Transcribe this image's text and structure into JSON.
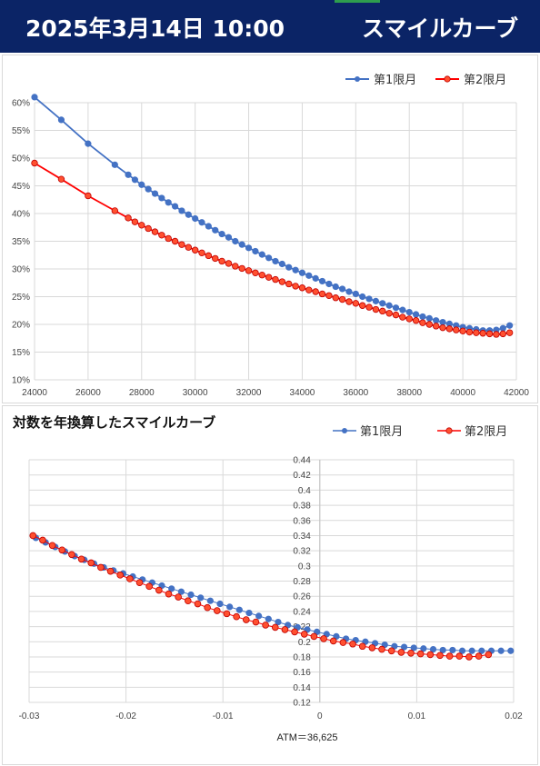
{
  "header": {
    "date": "2025年3月14日 10:00",
    "title": "スマイルカーブ"
  },
  "colors": {
    "header_bg": "#0b2466",
    "series1": "#4472c4",
    "series2": "#ff0000",
    "series2_fill": "#ff5030"
  },
  "chart_data": [
    {
      "type": "line",
      "title": "",
      "xlim": [
        24000,
        42000
      ],
      "ylim": [
        0.1,
        0.6
      ],
      "x_ticks": [
        24000,
        26000,
        28000,
        30000,
        32000,
        34000,
        36000,
        38000,
        40000,
        42000
      ],
      "y_ticks": [
        "10%",
        "15%",
        "20%",
        "25%",
        "30%",
        "35%",
        "40%",
        "45%",
        "50%",
        "55%",
        "60%"
      ],
      "y_tick_values": [
        0.1,
        0.15,
        0.2,
        0.25,
        0.3,
        0.35,
        0.4,
        0.45,
        0.5,
        0.55,
        0.6
      ],
      "legend_position": "top-right",
      "grid": true,
      "series": [
        {
          "name": "第1限月",
          "x": [
            24000,
            25000,
            26000,
            27000,
            27500,
            27750,
            28000,
            28250,
            28500,
            28750,
            29000,
            29250,
            29500,
            29750,
            30000,
            30250,
            30500,
            30750,
            31000,
            31250,
            31500,
            31750,
            32000,
            32250,
            32500,
            32750,
            33000,
            33250,
            33500,
            33750,
            34000,
            34250,
            34500,
            34750,
            35000,
            35250,
            35500,
            35750,
            36000,
            36250,
            36500,
            36750,
            37000,
            37250,
            37500,
            37750,
            38000,
            38250,
            38500,
            38750,
            39000,
            39250,
            39500,
            39750,
            40000,
            40250,
            40500,
            40750,
            41000,
            41250,
            41500,
            41750
          ],
          "y": [
            0.61,
            0.569,
            0.526,
            0.488,
            0.47,
            0.461,
            0.452,
            0.444,
            0.436,
            0.428,
            0.42,
            0.413,
            0.405,
            0.398,
            0.391,
            0.384,
            0.377,
            0.37,
            0.363,
            0.357,
            0.35,
            0.344,
            0.338,
            0.332,
            0.326,
            0.32,
            0.314,
            0.309,
            0.303,
            0.298,
            0.293,
            0.288,
            0.283,
            0.278,
            0.273,
            0.268,
            0.264,
            0.259,
            0.255,
            0.25,
            0.246,
            0.242,
            0.238,
            0.234,
            0.23,
            0.226,
            0.222,
            0.218,
            0.214,
            0.211,
            0.207,
            0.204,
            0.201,
            0.198,
            0.195,
            0.193,
            0.191,
            0.189,
            0.189,
            0.19,
            0.193,
            0.198
          ]
        },
        {
          "name": "第2限月",
          "x": [
            24000,
            25000,
            26000,
            27000,
            27500,
            27750,
            28000,
            28250,
            28500,
            28750,
            29000,
            29250,
            29500,
            29750,
            30000,
            30250,
            30500,
            30750,
            31000,
            31250,
            31500,
            31750,
            32000,
            32250,
            32500,
            32750,
            33000,
            33250,
            33500,
            33750,
            34000,
            34250,
            34500,
            34750,
            35000,
            35250,
            35500,
            35750,
            36000,
            36250,
            36500,
            36750,
            37000,
            37250,
            37500,
            37750,
            38000,
            38250,
            38500,
            38750,
            39000,
            39250,
            39500,
            39750,
            40000,
            40250,
            40500,
            40750,
            41000,
            41250,
            41500,
            41750
          ],
          "y": [
            0.491,
            0.462,
            0.432,
            0.405,
            0.392,
            0.385,
            0.379,
            0.373,
            0.367,
            0.361,
            0.355,
            0.35,
            0.344,
            0.339,
            0.334,
            0.329,
            0.324,
            0.319,
            0.314,
            0.31,
            0.305,
            0.301,
            0.297,
            0.293,
            0.289,
            0.285,
            0.281,
            0.277,
            0.273,
            0.269,
            0.266,
            0.262,
            0.259,
            0.255,
            0.252,
            0.248,
            0.245,
            0.241,
            0.238,
            0.234,
            0.231,
            0.227,
            0.224,
            0.22,
            0.217,
            0.213,
            0.21,
            0.207,
            0.203,
            0.2,
            0.197,
            0.194,
            0.192,
            0.19,
            0.188,
            0.186,
            0.185,
            0.184,
            0.183,
            0.182,
            0.183,
            0.185
          ]
        }
      ]
    },
    {
      "type": "scatter",
      "title": "対数を年換算したスマイルカーブ",
      "xlim": [
        -0.03,
        0.02
      ],
      "ylim": [
        0.12,
        0.44
      ],
      "x_ticks": [
        "-0.03",
        "-0.02",
        "-0.01",
        "0",
        "0.01",
        "0.02"
      ],
      "x_tick_values": [
        -0.03,
        -0.02,
        -0.01,
        0,
        0.01,
        0.02
      ],
      "y_ticks": [
        "0.12",
        "0.14",
        "0.16",
        "0.18",
        "0.2",
        "0.22",
        "0.24",
        "0.26",
        "0.28",
        "0.3",
        "0.32",
        "0.34",
        "0.36",
        "0.38",
        "0.4",
        "0.42",
        "0.44"
      ],
      "y_tick_values": [
        0.12,
        0.14,
        0.16,
        0.18,
        0.2,
        0.22,
        0.24,
        0.26,
        0.28,
        0.3,
        0.32,
        0.34,
        0.36,
        0.38,
        0.4,
        0.42,
        0.44
      ],
      "legend_position": "top-right",
      "grid": true,
      "annotation": "ATM＝36,625",
      "series": [
        {
          "name": "第1限月",
          "x": [
            -0.0293,
            -0.0283,
            -0.0273,
            -0.0263,
            -0.0253,
            -0.0243,
            -0.0233,
            -0.0223,
            -0.0213,
            -0.0203,
            -0.0193,
            -0.0183,
            -0.0173,
            -0.0163,
            -0.0153,
            -0.0143,
            -0.0133,
            -0.0123,
            -0.0113,
            -0.0103,
            -0.0093,
            -0.0083,
            -0.0073,
            -0.0063,
            -0.0053,
            -0.0043,
            -0.0033,
            -0.0023,
            -0.0013,
            -0.0003,
            0.0007,
            0.0017,
            0.0027,
            0.0037,
            0.0047,
            0.0057,
            0.0067,
            0.0077,
            0.0087,
            0.0097,
            0.0107,
            0.0117,
            0.0127,
            0.0137,
            0.0147,
            0.0157,
            0.0167,
            0.0177,
            0.0187,
            0.0197
          ],
          "y": [
            0.337,
            0.331,
            0.325,
            0.319,
            0.313,
            0.308,
            0.303,
            0.298,
            0.294,
            0.29,
            0.286,
            0.282,
            0.278,
            0.274,
            0.27,
            0.266,
            0.262,
            0.258,
            0.254,
            0.25,
            0.246,
            0.242,
            0.238,
            0.234,
            0.23,
            0.226,
            0.222,
            0.219,
            0.216,
            0.213,
            0.21,
            0.207,
            0.204,
            0.202,
            0.2,
            0.198,
            0.196,
            0.194,
            0.193,
            0.192,
            0.191,
            0.19,
            0.189,
            0.189,
            0.188,
            0.188,
            0.188,
            0.188,
            0.188,
            0.188
          ]
        },
        {
          "name": "第2限月",
          "x": [
            -0.0296,
            -0.0286,
            -0.0276,
            -0.0266,
            -0.0256,
            -0.0246,
            -0.0236,
            -0.0226,
            -0.0216,
            -0.0206,
            -0.0196,
            -0.0186,
            -0.0176,
            -0.0166,
            -0.0156,
            -0.0146,
            -0.0136,
            -0.0126,
            -0.0116,
            -0.0106,
            -0.0096,
            -0.0086,
            -0.0076,
            -0.0066,
            -0.0056,
            -0.0046,
            -0.0036,
            -0.0026,
            -0.0016,
            -0.0006,
            0.0004,
            0.0014,
            0.0024,
            0.0034,
            0.0044,
            0.0054,
            0.0064,
            0.0074,
            0.0084,
            0.0094,
            0.0104,
            0.0114,
            0.0124,
            0.0134,
            0.0144,
            0.0154,
            0.0164,
            0.0174
          ],
          "y": [
            0.34,
            0.334,
            0.327,
            0.321,
            0.315,
            0.309,
            0.304,
            0.298,
            0.293,
            0.288,
            0.283,
            0.278,
            0.273,
            0.268,
            0.263,
            0.259,
            0.254,
            0.25,
            0.245,
            0.241,
            0.237,
            0.233,
            0.229,
            0.226,
            0.222,
            0.219,
            0.216,
            0.213,
            0.21,
            0.207,
            0.204,
            0.201,
            0.199,
            0.197,
            0.194,
            0.192,
            0.19,
            0.188,
            0.186,
            0.185,
            0.184,
            0.183,
            0.182,
            0.181,
            0.181,
            0.18,
            0.181,
            0.183
          ]
        }
      ]
    }
  ]
}
